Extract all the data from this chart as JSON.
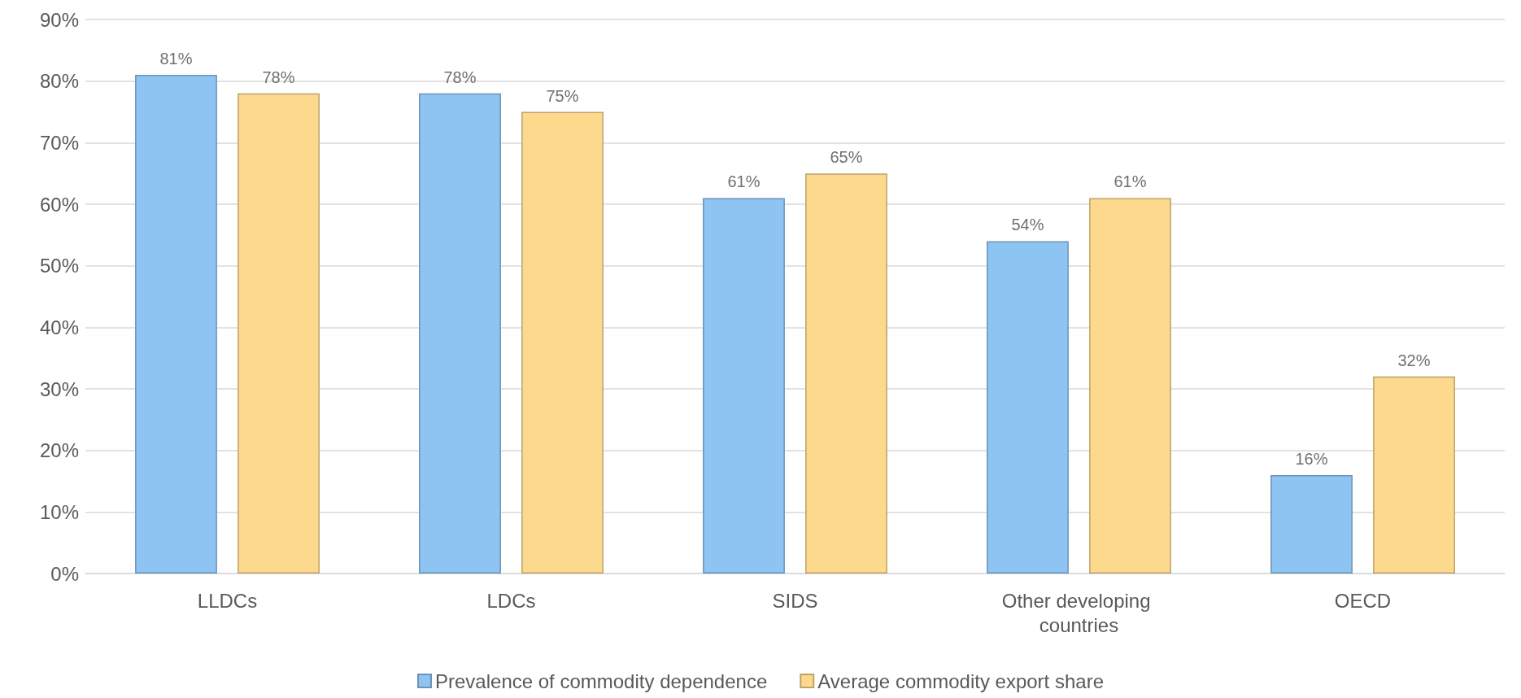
{
  "chart_data": {
    "type": "bar",
    "categories": [
      "LLDCs",
      "LDCs",
      "SIDS",
      "Other developing countries",
      "OECD"
    ],
    "series": [
      {
        "name": "Prevalence of commodity dependence",
        "color": "#8ec4f2",
        "values": [
          81,
          78,
          61,
          54,
          16
        ],
        "value_labels": [
          "81%",
          "78%",
          "61%",
          "54%",
          "16%"
        ]
      },
      {
        "name": "Average commodity export share",
        "color": "#fcd98c",
        "values": [
          78,
          75,
          65,
          61,
          32
        ],
        "value_labels": [
          "78%",
          "75%",
          "65%",
          "61%",
          "32%"
        ]
      }
    ],
    "ylim": [
      0,
      90
    ],
    "yticks": [
      {
        "value": 0,
        "label": "0%"
      },
      {
        "value": 10,
        "label": "10%"
      },
      {
        "value": 20,
        "label": "20%"
      },
      {
        "value": 30,
        "label": "30%"
      },
      {
        "value": 40,
        "label": "40%"
      },
      {
        "value": 50,
        "label": "50%"
      },
      {
        "value": 60,
        "label": "60%"
      },
      {
        "value": 70,
        "label": "70%"
      },
      {
        "value": 80,
        "label": "80%"
      },
      {
        "value": 90,
        "label": "90%"
      }
    ],
    "grid": "y",
    "legend": "bottom"
  }
}
